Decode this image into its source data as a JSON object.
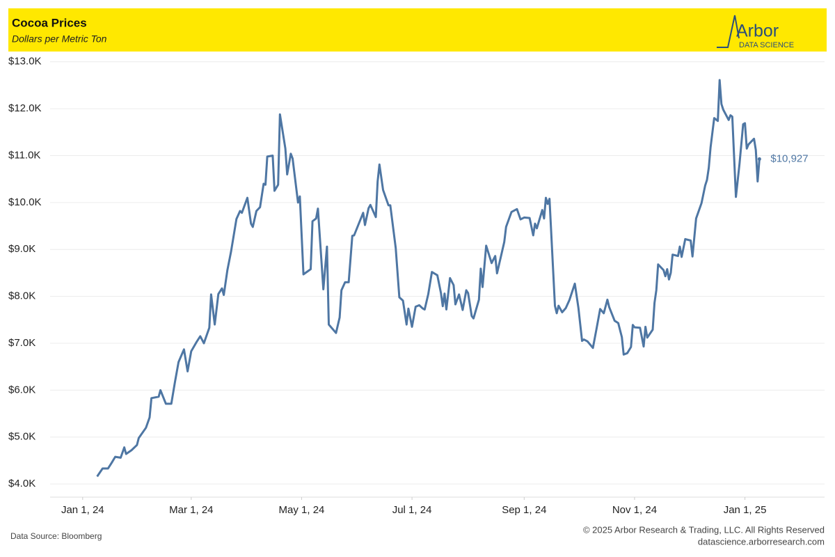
{
  "chart_data": {
    "type": "line",
    "title": "Cocoa Prices",
    "subtitle": "Dollars per Metric Ton",
    "logo": {
      "name": "Arbor",
      "tagline": "DATA SCIENCE"
    },
    "source": "Data Source: Bloomberg",
    "copyright": "© 2025 Arbor Research & Trading, LLC. All Rights Reserved",
    "website": "datascience.arborresearch.com",
    "x": [
      "2024-01-09",
      "2024-01-12",
      "2024-01-15",
      "2024-01-17",
      "2024-01-19",
      "2024-01-22",
      "2024-01-24",
      "2024-01-25",
      "2024-01-28",
      "2024-01-31",
      "2024-02-01",
      "2024-02-05",
      "2024-02-07",
      "2024-02-08",
      "2024-02-12",
      "2024-02-13",
      "2024-02-16",
      "2024-02-19",
      "2024-02-21",
      "2024-02-23",
      "2024-02-26",
      "2024-02-28",
      "2024-03-01",
      "2024-03-04",
      "2024-03-06",
      "2024-03-08",
      "2024-03-11",
      "2024-03-12",
      "2024-03-14",
      "2024-03-16",
      "2024-03-18",
      "2024-03-19",
      "2024-03-21",
      "2024-03-23",
      "2024-03-26",
      "2024-03-28",
      "2024-03-29",
      "2024-04-01",
      "2024-04-03",
      "2024-04-04",
      "2024-04-06",
      "2024-04-08",
      "2024-04-10",
      "2024-04-11",
      "2024-04-12",
      "2024-04-15",
      "2024-04-16",
      "2024-04-18",
      "2024-04-19",
      "2024-04-22",
      "2024-04-23",
      "2024-04-25",
      "2024-04-26",
      "2024-04-29",
      "2024-04-30",
      "2024-05-02",
      "2024-05-06",
      "2024-05-07",
      "2024-05-09",
      "2024-05-10",
      "2024-05-13",
      "2024-05-15",
      "2024-05-16",
      "2024-05-20",
      "2024-05-22",
      "2024-05-23",
      "2024-05-25",
      "2024-05-27",
      "2024-05-29",
      "2024-05-30",
      "2024-06-04",
      "2024-06-05",
      "2024-06-07",
      "2024-06-08",
      "2024-06-11",
      "2024-06-12",
      "2024-06-13",
      "2024-06-15",
      "2024-06-18",
      "2024-06-19",
      "2024-06-22",
      "2024-06-24",
      "2024-06-26",
      "2024-06-28",
      "2024-06-29",
      "2024-07-01",
      "2024-07-03",
      "2024-07-05",
      "2024-07-07",
      "2024-07-08",
      "2024-07-10",
      "2024-07-12",
      "2024-07-15",
      "2024-07-17",
      "2024-07-18",
      "2024-07-19",
      "2024-07-20",
      "2024-07-22",
      "2024-07-24",
      "2024-07-25",
      "2024-07-27",
      "2024-07-29",
      "2024-07-31",
      "2024-08-01",
      "2024-08-03",
      "2024-08-04",
      "2024-08-07",
      "2024-08-08",
      "2024-08-09",
      "2024-08-11",
      "2024-08-14",
      "2024-08-16",
      "2024-08-17",
      "2024-08-21",
      "2024-08-22",
      "2024-08-25",
      "2024-08-28",
      "2024-08-30",
      "2024-09-01",
      "2024-09-04",
      "2024-09-06",
      "2024-09-07",
      "2024-09-08",
      "2024-09-11",
      "2024-09-12",
      "2024-09-13",
      "2024-09-14",
      "2024-09-15",
      "2024-09-18",
      "2024-09-19",
      "2024-09-20",
      "2024-09-22",
      "2024-09-24",
      "2024-09-26",
      "2024-09-29",
      "2024-10-01",
      "2024-10-03",
      "2024-10-04",
      "2024-10-06",
      "2024-10-09",
      "2024-10-11",
      "2024-10-13",
      "2024-10-15",
      "2024-10-17",
      "2024-10-18",
      "2024-10-21",
      "2024-10-23",
      "2024-10-25",
      "2024-10-26",
      "2024-10-28",
      "2024-10-30",
      "2024-10-31",
      "2024-11-01",
      "2024-11-04",
      "2024-11-06",
      "2024-11-07",
      "2024-11-08",
      "2024-11-11",
      "2024-11-12",
      "2024-11-13",
      "2024-11-14",
      "2024-11-17",
      "2024-11-18",
      "2024-11-19",
      "2024-11-20",
      "2024-11-21",
      "2024-11-22",
      "2024-11-25",
      "2024-11-26",
      "2024-11-27",
      "2024-11-29",
      "2024-12-02",
      "2024-12-03",
      "2024-12-05",
      "2024-12-08",
      "2024-12-10",
      "2024-12-11",
      "2024-12-12",
      "2024-12-13",
      "2024-12-15",
      "2024-12-17",
      "2024-12-18",
      "2024-12-19",
      "2024-12-20",
      "2024-12-23",
      "2024-12-24",
      "2024-12-25",
      "2024-12-27",
      "2024-12-29",
      "2024-12-31",
      "2025-01-01",
      "2025-01-02",
      "2025-01-03",
      "2025-01-06",
      "2025-01-07",
      "2025-01-08",
      "2025-01-09"
    ],
    "series": [
      {
        "name": "Cocoa",
        "color": "#4e76a3",
        "values": [
          4160,
          4330,
          4330,
          4450,
          4580,
          4560,
          4780,
          4640,
          4720,
          4830,
          4980,
          5200,
          5420,
          5830,
          5860,
          6000,
          5710,
          5710,
          6170,
          6600,
          6870,
          6400,
          6830,
          7030,
          7150,
          7000,
          7330,
          8040,
          7400,
          8050,
          8170,
          8030,
          8560,
          8950,
          9650,
          9820,
          9780,
          10100,
          9550,
          9480,
          9820,
          9900,
          10400,
          10380,
          10980,
          11000,
          10250,
          10380,
          11880,
          11150,
          10600,
          11040,
          10940,
          10000,
          10130,
          8470,
          8580,
          9600,
          9660,
          9870,
          8150,
          9060,
          7400,
          7220,
          7550,
          8130,
          8300,
          8300,
          9290,
          9300,
          9780,
          9520,
          9880,
          9950,
          9690,
          10450,
          10810,
          10270,
          9940,
          9940,
          9030,
          7980,
          7910,
          7400,
          7740,
          7350,
          7780,
          7810,
          7740,
          7720,
          8050,
          8520,
          8450,
          8070,
          7790,
          8060,
          7720,
          8390,
          8240,
          7830,
          8040,
          7710,
          8130,
          8070,
          7580,
          7530,
          7930,
          8590,
          8200,
          9080,
          8710,
          8860,
          8490,
          9160,
          9480,
          9800,
          9860,
          9640,
          9680,
          9670,
          9300,
          9550,
          9450,
          9840,
          9660,
          10100,
          9970,
          10080,
          7800,
          7640,
          7800,
          7660,
          7750,
          7920,
          8270,
          7750,
          7050,
          7080,
          7040,
          6900,
          7310,
          7730,
          7640,
          7930,
          7770,
          7480,
          7430,
          7130,
          6760,
          6790,
          6920,
          7390,
          7340,
          7330,
          6930,
          7350,
          7120,
          7290,
          7860,
          8130,
          8680,
          8560,
          8430,
          8580,
          8360,
          8500,
          8890,
          8860,
          9060,
          8840,
          9220,
          9190,
          8850,
          9660,
          9990,
          10360,
          10480,
          10740,
          11180,
          11800,
          11740,
          12610,
          12100,
          11980,
          11760,
          11860,
          11830,
          10120,
          10830,
          11670,
          11690,
          11150,
          11240,
          11360,
          11120,
          10450,
          10927
        ]
      }
    ],
    "annotations": [
      {
        "x": "2025-01-09",
        "value": 10927,
        "label": "$10,927"
      }
    ],
    "xlim": [
      "2023-12-14",
      "2025-02-14"
    ],
    "xticks": [
      {
        "value": "2024-01-01",
        "label": "Jan 1, 24"
      },
      {
        "value": "2024-03-01",
        "label": "Mar 1, 24"
      },
      {
        "value": "2024-05-01",
        "label": "May 1, 24"
      },
      {
        "value": "2024-07-01",
        "label": "Jul 1, 24"
      },
      {
        "value": "2024-09-01",
        "label": "Sep 1, 24"
      },
      {
        "value": "2024-11-01",
        "label": "Nov 1, 24"
      },
      {
        "value": "2025-01-01",
        "label": "Jan 1, 25"
      }
    ],
    "ylim": [
      3720,
      13130
    ],
    "yticks": [
      {
        "value": 4000,
        "label": "$4.0K"
      },
      {
        "value": 5000,
        "label": "$5.0K"
      },
      {
        "value": 6000,
        "label": "$6.0K"
      },
      {
        "value": 7000,
        "label": "$7.0K"
      },
      {
        "value": 8000,
        "label": "$8.0K"
      },
      {
        "value": 9000,
        "label": "$9.0K"
      },
      {
        "value": 10000,
        "label": "$10.0K"
      },
      {
        "value": 11000,
        "label": "$11.0K"
      },
      {
        "value": 12000,
        "label": "$12.0K"
      },
      {
        "value": 13000,
        "label": "$13.0K"
      }
    ],
    "grid": true
  }
}
